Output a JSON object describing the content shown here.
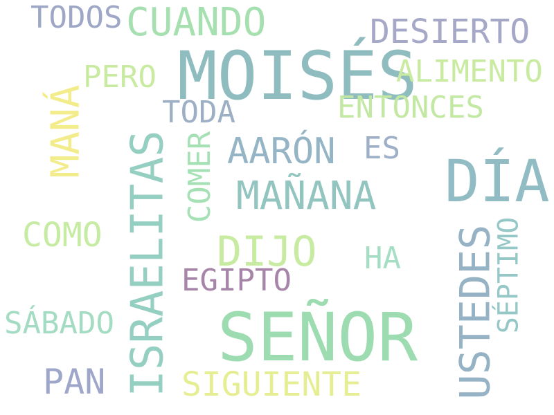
{
  "background": "#ffffff",
  "words": [
    {
      "text": "MOISÉS",
      "color": "#8fbcbf",
      "vertical": false
    },
    {
      "text": "SEÑOR",
      "color": "#9ddbb0",
      "vertical": false
    },
    {
      "text": "DÍA",
      "color": "#92bcc4",
      "vertical": false
    },
    {
      "text": "ISRAELITAS",
      "color": "#95cfc2",
      "vertical": true
    },
    {
      "text": "USTEDES",
      "color": "#95b3c4",
      "vertical": true
    },
    {
      "text": "MANÁ",
      "color": "#f3ec8a",
      "vertical": true
    },
    {
      "text": "CUANDO",
      "color": "#a7e0b0",
      "vertical": false
    },
    {
      "text": "DESIERTO",
      "color": "#a6a8c8",
      "vertical": false
    },
    {
      "text": "TODOS",
      "color": "#9ea7c6",
      "vertical": false
    },
    {
      "text": "ALIMENTO",
      "color": "#c8eba1",
      "vertical": false
    },
    {
      "text": "PERO",
      "color": "#c8eba1",
      "vertical": false
    },
    {
      "text": "ENTONCES",
      "color": "#c2e8a3",
      "vertical": false
    },
    {
      "text": "TODA",
      "color": "#9dafc5",
      "vertical": false
    },
    {
      "text": "AARÓN",
      "color": "#95b5c6",
      "vertical": false
    },
    {
      "text": "ES",
      "color": "#9eb0c8",
      "vertical": false
    },
    {
      "text": "COMER",
      "color": "#a6e1b6",
      "vertical": true
    },
    {
      "text": "MAÑANA",
      "color": "#92c4c0",
      "vertical": false
    },
    {
      "text": "COMO",
      "color": "#c6eba2",
      "vertical": false
    },
    {
      "text": "DIJO",
      "color": "#c7eba0",
      "vertical": false
    },
    {
      "text": "HA",
      "color": "#a5dec4",
      "vertical": false
    },
    {
      "text": "SÉPTIMO",
      "color": "#95c7c7",
      "vertical": true
    },
    {
      "text": "EGIPTO",
      "color": "#a685a9",
      "vertical": false
    },
    {
      "text": "SÁBADO",
      "color": "#a3dcc2",
      "vertical": false
    },
    {
      "text": "PAN",
      "color": "#9ea6c9",
      "vertical": false
    },
    {
      "text": "SIGUIENTE",
      "color": "#e6ee94",
      "vertical": false
    }
  ]
}
